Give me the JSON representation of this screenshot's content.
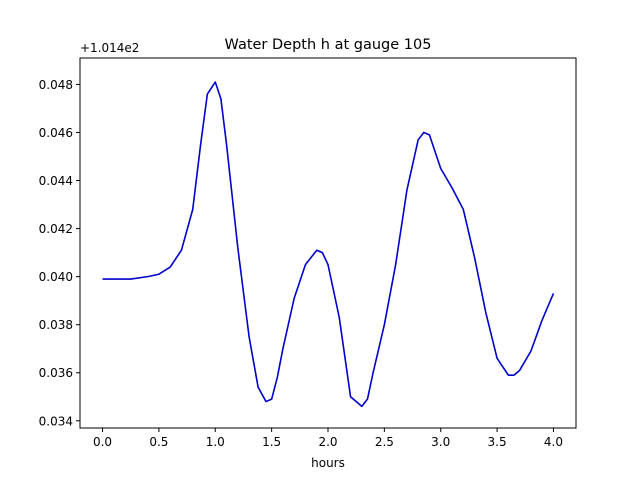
{
  "chart_data": {
    "type": "line",
    "title": "Water Depth h at gauge 105",
    "xlabel": "hours",
    "ylabel": "",
    "y_offset_label": "+1.014e2",
    "xlim": [
      -0.2,
      4.2
    ],
    "ylim": [
      0.0337,
      0.0491
    ],
    "xticks": [
      0.0,
      0.5,
      1.0,
      1.5,
      2.0,
      2.5,
      3.0,
      3.5,
      4.0
    ],
    "xtick_labels": [
      "0.0",
      "0.5",
      "1.0",
      "1.5",
      "2.0",
      "2.5",
      "3.0",
      "3.5",
      "4.0"
    ],
    "yticks": [
      0.034,
      0.036,
      0.038,
      0.04,
      0.042,
      0.044,
      0.046,
      0.048
    ],
    "ytick_labels": [
      "0.034",
      "0.036",
      "0.038",
      "0.040",
      "0.042",
      "0.044",
      "0.046",
      "0.048"
    ],
    "grid": false,
    "series": [
      {
        "name": "h",
        "color": "#0000cc",
        "x": [
          0.0,
          0.1,
          0.25,
          0.4,
          0.5,
          0.6,
          0.7,
          0.8,
          0.87,
          0.93,
          1.0,
          1.05,
          1.1,
          1.2,
          1.3,
          1.38,
          1.45,
          1.5,
          1.55,
          1.6,
          1.7,
          1.8,
          1.9,
          1.95,
          2.0,
          2.1,
          2.2,
          2.3,
          2.35,
          2.4,
          2.5,
          2.6,
          2.7,
          2.8,
          2.85,
          2.9,
          2.95,
          3.0,
          3.1,
          3.2,
          3.3,
          3.4,
          3.5,
          3.6,
          3.65,
          3.7,
          3.8,
          3.9,
          4.0
        ],
        "values": [
          0.0399,
          0.0399,
          0.0399,
          0.04,
          0.0401,
          0.0404,
          0.0411,
          0.0428,
          0.0455,
          0.0476,
          0.0481,
          0.0474,
          0.0455,
          0.0412,
          0.0375,
          0.0354,
          0.0348,
          0.0349,
          0.0358,
          0.037,
          0.0391,
          0.0405,
          0.0411,
          0.041,
          0.0405,
          0.0383,
          0.035,
          0.0346,
          0.0349,
          0.036,
          0.038,
          0.0405,
          0.0436,
          0.0457,
          0.046,
          0.0459,
          0.0452,
          0.0445,
          0.0437,
          0.0428,
          0.0408,
          0.0385,
          0.0366,
          0.0359,
          0.0359,
          0.0361,
          0.0369,
          0.0382,
          0.0393
        ]
      }
    ]
  }
}
